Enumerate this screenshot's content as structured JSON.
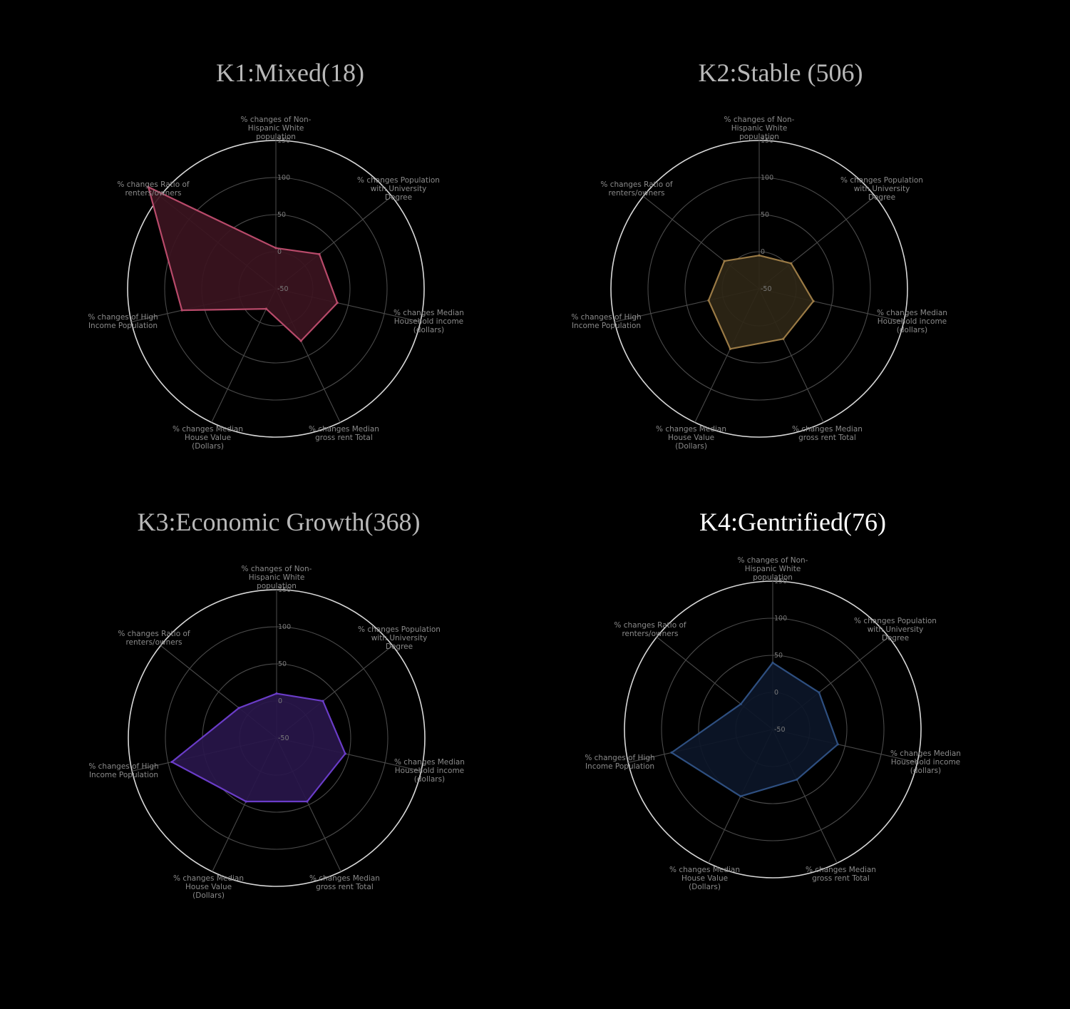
{
  "chart_data": [
    {
      "type": "radar",
      "title": "K1:Mixed(18)",
      "title_color": "#b8b8b8",
      "color": "#b84a6a",
      "fill": "#3b1420",
      "axes": [
        "% changes of Non-Hispanic White population",
        "% changes Population with University Degree",
        "% changes Median Household income (dollars)",
        "% changes Median gross rent Total",
        "% changes Median House Value (Dollars)",
        "% changes of High Income Population",
        "% changes Ratio of renters/owners"
      ],
      "ticks": [
        "-50",
        "0",
        "50",
        "100",
        "150"
      ],
      "rlim": [
        -50,
        150
      ],
      "values": [
        5,
        25,
        35,
        28,
        -20,
        80,
        170
      ]
    },
    {
      "type": "radar",
      "title": "K2:Stable (506)",
      "title_color": "#b8b8b8",
      "color": "#9a7a45",
      "fill": "#2e2616",
      "axes": [
        "% changes of Non-Hispanic White population",
        "% changes Population with University Degree",
        "% changes Median Household income (dollars)",
        "% changes Median gross rent Total",
        "% changes Median House Value (Dollars)",
        "% changes of High Income Population",
        "% changes Ratio of renters/owners"
      ],
      "ticks": [
        "-50",
        "0",
        "50",
        "100",
        "150"
      ],
      "rlim": [
        -50,
        150
      ],
      "values": [
        -5,
        5,
        25,
        25,
        40,
        20,
        10
      ]
    },
    {
      "type": "radar",
      "title": "K3:Economic Growth(368)",
      "title_color": "#b8b8b8",
      "color": "#6a3cc8",
      "fill": "#28164a",
      "axes": [
        "% changes of Non-Hispanic White population",
        "% changes Population with University Degree",
        "% changes Median Household income (dollars)",
        "% changes Median gross rent Total",
        "% changes Median House Value (Dollars)",
        "% changes of High Income Population",
        "% changes Ratio of renters/owners"
      ],
      "ticks": [
        "-50",
        "0",
        "50",
        "100",
        "150"
      ],
      "rlim": [
        -50,
        150
      ],
      "values": [
        10,
        30,
        45,
        45,
        45,
        95,
        15
      ]
    },
    {
      "type": "radar",
      "title": "K4:Gentrified(76)",
      "title_color": "#ffffff",
      "color": "#2e4f80",
      "fill": "#0c1628",
      "axes": [
        "% changes of Non-Hispanic White population",
        "% changes Population with University Degree",
        "% changes Median Household income (dollars)",
        "% changes Median gross rent Total",
        "% changes Median House Value (Dollars)",
        "% changes of High Income Population",
        "% changes Ratio of renters/owners"
      ],
      "ticks": [
        "-50",
        "0",
        "50",
        "100",
        "150"
      ],
      "rlim": [
        -50,
        150
      ],
      "values": [
        40,
        30,
        40,
        25,
        50,
        90,
        5
      ]
    }
  ]
}
